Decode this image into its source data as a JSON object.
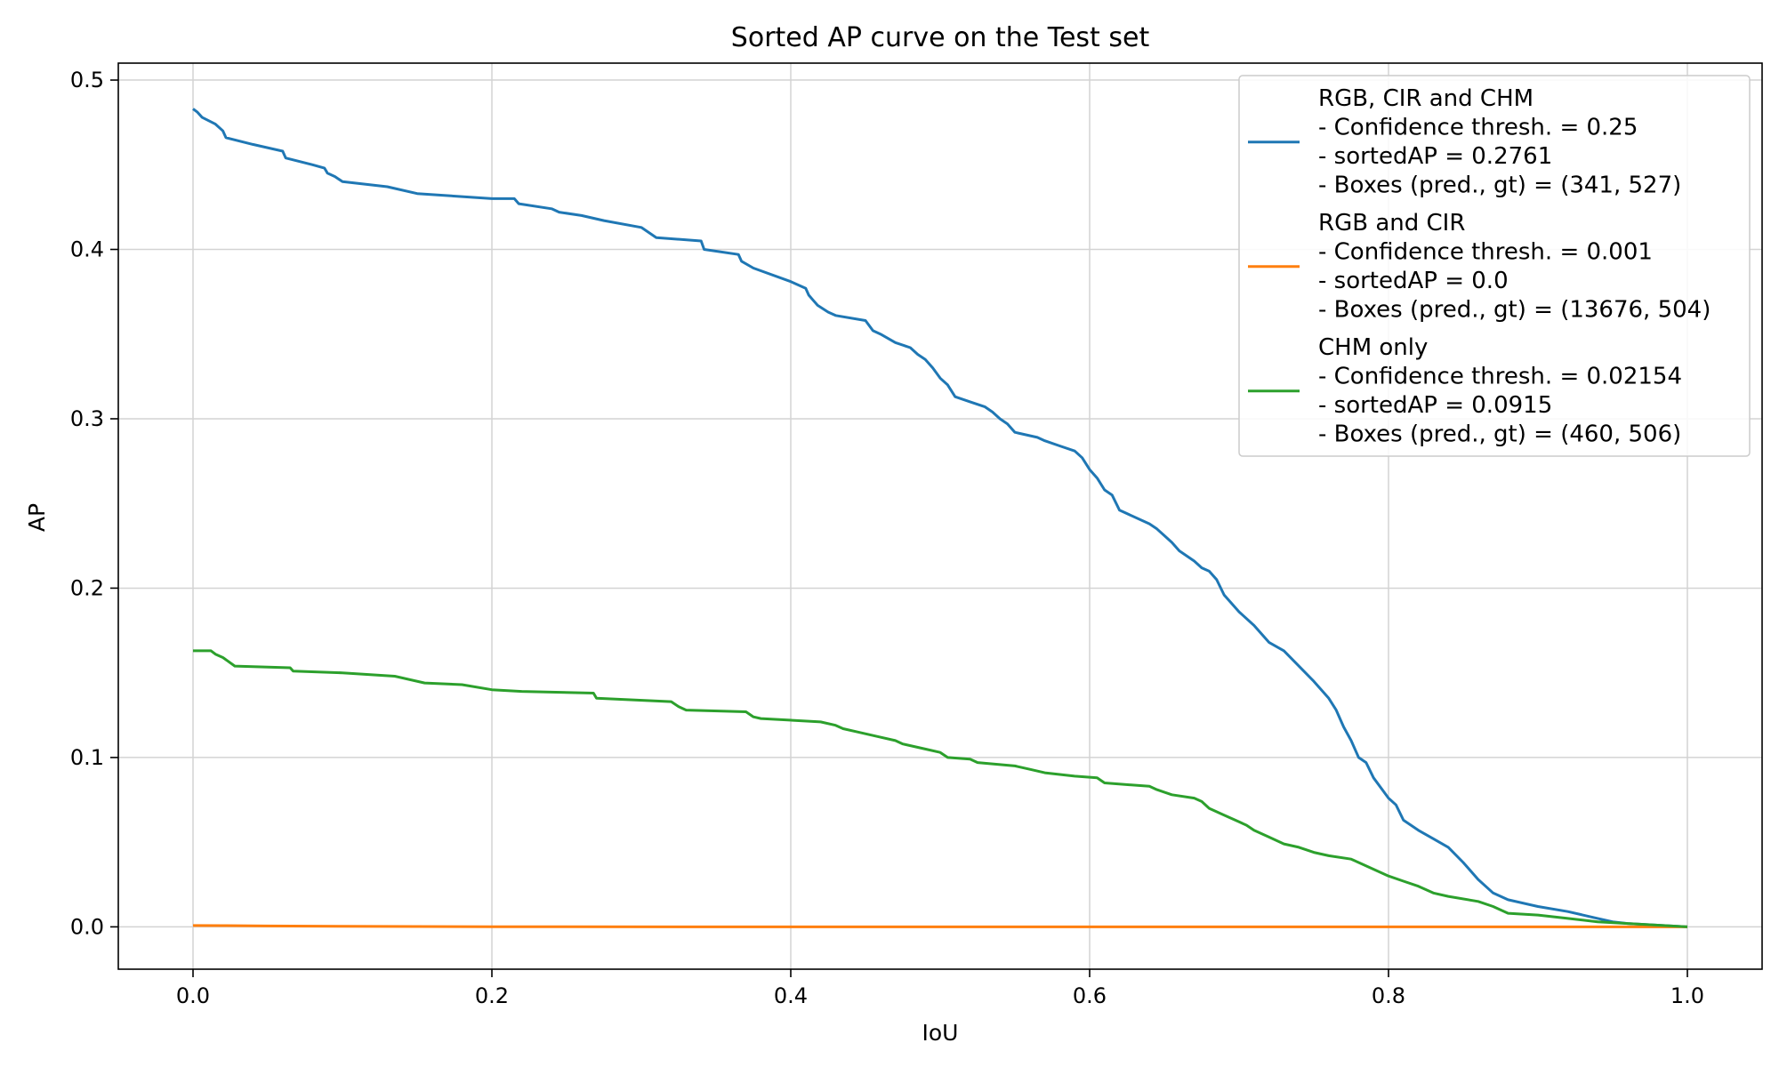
{
  "chart_data": {
    "type": "line",
    "title": "Sorted AP curve on the Test set",
    "xlabel": "IoU",
    "ylabel": "AP",
    "xlim": [
      -0.05,
      1.05
    ],
    "ylim": [
      -0.025,
      0.51
    ],
    "xticks": [
      0.0,
      0.2,
      0.4,
      0.6,
      0.8,
      1.0
    ],
    "xtick_labels": [
      "0.0",
      "0.2",
      "0.4",
      "0.6",
      "0.8",
      "1.0"
    ],
    "yticks": [
      0.0,
      0.1,
      0.2,
      0.3,
      0.4,
      0.5
    ],
    "ytick_labels": [
      "0.0",
      "0.1",
      "0.2",
      "0.3",
      "0.4",
      "0.5"
    ],
    "grid": true,
    "legend_position": "top-right",
    "series": [
      {
        "name": "RGB, CIR and CHM",
        "legend_lines": [
          "RGB, CIR and CHM",
          "- Confidence thresh. = 0.25",
          "- sortedAP = 0.2761",
          "- Boxes (pred., gt) = (341, 527)"
        ],
        "color": "#1f77b4",
        "x": [
          0.0,
          0.003,
          0.006,
          0.015,
          0.02,
          0.022,
          0.04,
          0.06,
          0.062,
          0.08,
          0.088,
          0.09,
          0.095,
          0.1,
          0.13,
          0.15,
          0.2,
          0.215,
          0.218,
          0.24,
          0.245,
          0.26,
          0.275,
          0.3,
          0.31,
          0.34,
          0.342,
          0.365,
          0.367,
          0.375,
          0.4,
          0.41,
          0.412,
          0.415,
          0.418,
          0.425,
          0.43,
          0.45,
          0.455,
          0.46,
          0.47,
          0.48,
          0.485,
          0.49,
          0.495,
          0.5,
          0.505,
          0.51,
          0.52,
          0.53,
          0.535,
          0.54,
          0.545,
          0.55,
          0.565,
          0.57,
          0.58,
          0.59,
          0.595,
          0.6,
          0.605,
          0.61,
          0.615,
          0.62,
          0.64,
          0.645,
          0.65,
          0.655,
          0.66,
          0.67,
          0.675,
          0.68,
          0.685,
          0.69,
          0.7,
          0.71,
          0.72,
          0.73,
          0.74,
          0.75,
          0.755,
          0.76,
          0.765,
          0.77,
          0.775,
          0.78,
          0.785,
          0.79,
          0.8,
          0.805,
          0.81,
          0.82,
          0.83,
          0.84,
          0.85,
          0.86,
          0.87,
          0.88,
          0.9,
          0.92,
          0.94,
          0.95,
          0.96,
          0.98,
          1.0
        ],
        "y": [
          0.483,
          0.481,
          0.478,
          0.474,
          0.47,
          0.466,
          0.462,
          0.458,
          0.454,
          0.45,
          0.448,
          0.445,
          0.443,
          0.44,
          0.437,
          0.433,
          0.43,
          0.43,
          0.427,
          0.424,
          0.422,
          0.42,
          0.417,
          0.413,
          0.407,
          0.405,
          0.4,
          0.397,
          0.393,
          0.389,
          0.381,
          0.377,
          0.373,
          0.37,
          0.367,
          0.363,
          0.361,
          0.358,
          0.352,
          0.35,
          0.345,
          0.342,
          0.338,
          0.335,
          0.33,
          0.324,
          0.32,
          0.313,
          0.31,
          0.307,
          0.304,
          0.3,
          0.297,
          0.292,
          0.289,
          0.287,
          0.284,
          0.281,
          0.277,
          0.27,
          0.265,
          0.258,
          0.255,
          0.246,
          0.238,
          0.235,
          0.231,
          0.227,
          0.222,
          0.216,
          0.212,
          0.21,
          0.205,
          0.196,
          0.186,
          0.178,
          0.168,
          0.163,
          0.154,
          0.145,
          0.14,
          0.135,
          0.128,
          0.118,
          0.11,
          0.1,
          0.097,
          0.088,
          0.076,
          0.072,
          0.063,
          0.057,
          0.052,
          0.047,
          0.038,
          0.028,
          0.02,
          0.016,
          0.012,
          0.009,
          0.005,
          0.003,
          0.002,
          0.001,
          0.0
        ]
      },
      {
        "name": "RGB and CIR",
        "legend_lines": [
          "RGB and CIR",
          "- Confidence thresh. = 0.001",
          "- sortedAP = 0.0",
          "- Boxes (pred., gt) = (13676, 504)"
        ],
        "color": "#ff7f0e",
        "x": [
          0.0,
          0.02,
          0.05,
          0.1,
          0.2,
          0.4,
          0.6,
          0.8,
          1.0
        ],
        "y": [
          0.0008,
          0.0007,
          0.0005,
          0.0003,
          0.0001,
          0.0,
          0.0,
          0.0,
          0.0
        ]
      },
      {
        "name": "CHM only",
        "legend_lines": [
          "CHM only",
          "- Confidence thresh. = 0.02154",
          "- sortedAP = 0.0915",
          "- Boxes (pred., gt) = (460, 506)"
        ],
        "color": "#2ca02c",
        "x": [
          0.0,
          0.012,
          0.015,
          0.02,
          0.028,
          0.065,
          0.067,
          0.1,
          0.135,
          0.155,
          0.18,
          0.2,
          0.22,
          0.268,
          0.27,
          0.32,
          0.325,
          0.33,
          0.37,
          0.375,
          0.38,
          0.42,
          0.43,
          0.435,
          0.445,
          0.46,
          0.47,
          0.475,
          0.49,
          0.5,
          0.505,
          0.52,
          0.525,
          0.55,
          0.56,
          0.57,
          0.59,
          0.605,
          0.61,
          0.64,
          0.645,
          0.655,
          0.67,
          0.675,
          0.68,
          0.69,
          0.7,
          0.705,
          0.71,
          0.72,
          0.73,
          0.74,
          0.75,
          0.76,
          0.775,
          0.78,
          0.79,
          0.8,
          0.81,
          0.82,
          0.83,
          0.84,
          0.86,
          0.87,
          0.88,
          0.9,
          0.92,
          0.94,
          0.96,
          0.98,
          1.0
        ],
        "y": [
          0.163,
          0.163,
          0.161,
          0.159,
          0.154,
          0.153,
          0.151,
          0.15,
          0.148,
          0.144,
          0.143,
          0.14,
          0.139,
          0.138,
          0.135,
          0.133,
          0.13,
          0.128,
          0.127,
          0.124,
          0.123,
          0.121,
          0.119,
          0.117,
          0.115,
          0.112,
          0.11,
          0.108,
          0.105,
          0.103,
          0.1,
          0.099,
          0.097,
          0.095,
          0.093,
          0.091,
          0.089,
          0.088,
          0.085,
          0.083,
          0.081,
          0.078,
          0.076,
          0.074,
          0.07,
          0.066,
          0.062,
          0.06,
          0.057,
          0.053,
          0.049,
          0.047,
          0.044,
          0.042,
          0.04,
          0.038,
          0.034,
          0.03,
          0.027,
          0.024,
          0.02,
          0.018,
          0.015,
          0.012,
          0.008,
          0.007,
          0.005,
          0.003,
          0.002,
          0.001,
          0.0
        ]
      }
    ]
  }
}
